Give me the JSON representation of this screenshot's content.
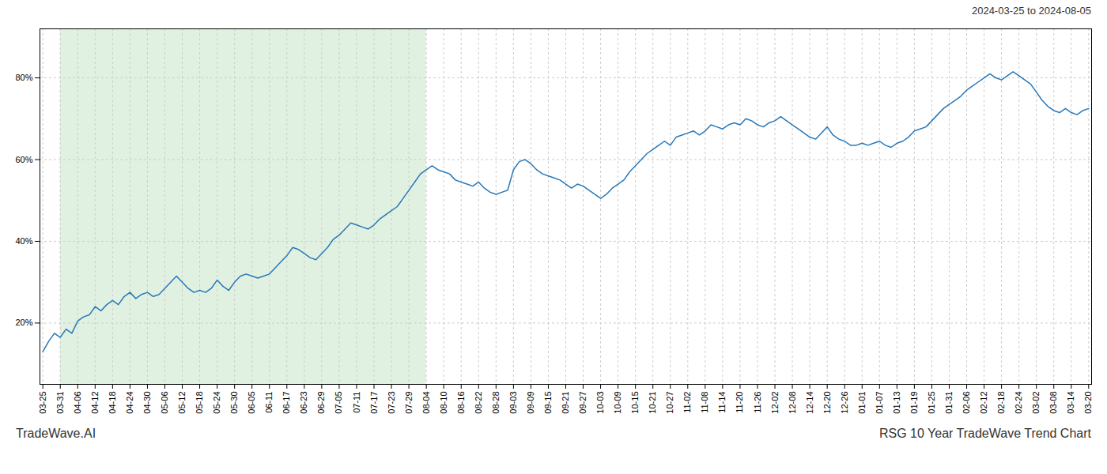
{
  "chart_data": {
    "type": "line",
    "title": "RSG 10 Year TradeWave Trend Chart",
    "subtitle": "2024-03-25 to 2024-08-05",
    "caption": "TradeWave.AI",
    "color": "#2878b8",
    "grid": true,
    "highlight": {
      "from": "03-31",
      "to": "08-04",
      "color": "#c8e6c9"
    },
    "ylim": [
      5,
      92
    ],
    "yticks": [
      {
        "value": 20,
        "label": "20%"
      },
      {
        "value": 40,
        "label": "40%"
      },
      {
        "value": 60,
        "label": "60%"
      },
      {
        "value": 80,
        "label": "80%"
      }
    ],
    "categories": [
      "03-25",
      null,
      null,
      "03-31",
      null,
      null,
      "04-06",
      null,
      null,
      "04-12",
      null,
      null,
      "04-18",
      null,
      null,
      "04-24",
      null,
      null,
      "04-30",
      null,
      null,
      "05-06",
      null,
      null,
      "05-12",
      null,
      null,
      "05-18",
      null,
      null,
      "05-24",
      null,
      null,
      "05-30",
      null,
      null,
      "06-05",
      null,
      null,
      "06-11",
      null,
      null,
      "06-17",
      null,
      null,
      "06-23",
      null,
      null,
      "06-29",
      null,
      null,
      "07-05",
      null,
      null,
      "07-11",
      null,
      null,
      "07-17",
      null,
      null,
      "07-23",
      null,
      null,
      "07-29",
      null,
      null,
      "08-04",
      null,
      null,
      "08-10",
      null,
      null,
      "08-16",
      null,
      null,
      "08-22",
      null,
      null,
      "08-28",
      null,
      null,
      "09-03",
      null,
      null,
      "09-09",
      null,
      null,
      "09-15",
      null,
      null,
      "09-21",
      null,
      null,
      "09-27",
      null,
      null,
      "10-03",
      null,
      null,
      "10-09",
      null,
      null,
      "10-15",
      null,
      null,
      "10-21",
      null,
      null,
      "10-27",
      null,
      null,
      "11-02",
      null,
      null,
      "11-08",
      null,
      null,
      "11-14",
      null,
      null,
      "11-20",
      null,
      null,
      "11-26",
      null,
      null,
      "12-02",
      null,
      null,
      "12-08",
      null,
      null,
      "12-14",
      null,
      null,
      "12-20",
      null,
      null,
      "12-26",
      null,
      null,
      "01-01",
      null,
      null,
      "01-07",
      null,
      null,
      "01-13",
      null,
      null,
      "01-19",
      null,
      null,
      "01-25",
      null,
      null,
      "01-31",
      null,
      null,
      "02-06",
      null,
      null,
      "02-12",
      null,
      null,
      "02-18",
      null,
      null,
      "02-24",
      null,
      null,
      "03-02",
      null,
      null,
      "03-08",
      null,
      null,
      "03-14",
      null,
      null,
      "03-20"
    ],
    "values": [
      13.0,
      15.5,
      17.5,
      16.5,
      18.5,
      17.5,
      20.5,
      21.5,
      22.0,
      24.0,
      23.0,
      24.5,
      25.5,
      24.5,
      26.5,
      27.5,
      26.0,
      27.0,
      27.5,
      26.5,
      27.0,
      28.5,
      30.0,
      31.5,
      30.0,
      28.5,
      27.5,
      28.0,
      27.5,
      28.5,
      30.5,
      29.0,
      28.0,
      30.0,
      31.5,
      32.0,
      31.5,
      31.0,
      31.5,
      32.0,
      33.5,
      35.0,
      36.5,
      38.5,
      38.0,
      37.0,
      36.0,
      35.5,
      37.0,
      38.5,
      40.5,
      41.5,
      43.0,
      44.5,
      44.0,
      43.5,
      43.0,
      44.0,
      45.5,
      46.5,
      47.5,
      48.5,
      50.5,
      52.5,
      54.5,
      56.5,
      57.5,
      58.5,
      57.5,
      57.0,
      56.5,
      55.0,
      54.5,
      54.0,
      53.5,
      54.5,
      53.0,
      52.0,
      51.5,
      52.0,
      52.5,
      57.5,
      59.5,
      60.0,
      59.0,
      57.5,
      56.5,
      56.0,
      55.5,
      55.0,
      54.0,
      53.0,
      54.0,
      53.5,
      52.5,
      51.5,
      50.5,
      51.5,
      53.0,
      54.0,
      55.0,
      57.0,
      58.5,
      60.0,
      61.5,
      62.5,
      63.5,
      64.5,
      63.5,
      65.5,
      66.0,
      66.5,
      67.0,
      66.0,
      67.0,
      68.5,
      68.0,
      67.5,
      68.5,
      69.0,
      68.5,
      70.0,
      69.5,
      68.5,
      68.0,
      69.0,
      69.5,
      70.5,
      69.5,
      68.5,
      67.5,
      66.5,
      65.5,
      65.0,
      66.5,
      68.0,
      66.0,
      65.0,
      64.5,
      63.5,
      63.5,
      64.0,
      63.5,
      64.0,
      64.5,
      63.5,
      63.0,
      64.0,
      64.5,
      65.5,
      67.0,
      67.5,
      68.0,
      69.5,
      71.0,
      72.5,
      73.5,
      74.5,
      75.5,
      77.0,
      78.0,
      79.0,
      80.0,
      81.0,
      80.0,
      79.5,
      80.5,
      81.5,
      80.5,
      79.5,
      78.5,
      76.5,
      74.5,
      73.0,
      72.0,
      71.5,
      72.5,
      71.5,
      71.0,
      72.0,
      72.5
    ]
  }
}
